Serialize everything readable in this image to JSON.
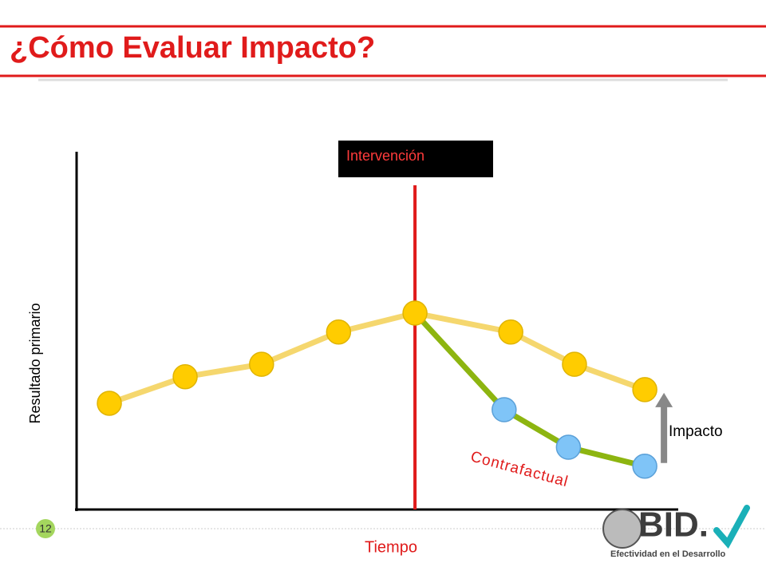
{
  "slide": {
    "title": "¿Cómo Evaluar Impacto?",
    "page_number": "12",
    "logo_text": "BID.",
    "logo_tagline": "Efectividad en el Desarrollo"
  },
  "chart_data": {
    "type": "line",
    "x_label": "Tiempo",
    "y_label": "Resultado primario",
    "xlim": [
      0,
      100
    ],
    "ylim": [
      0,
      100
    ],
    "series": [
      {
        "color": "#ffcc00",
        "x": [
          5.4,
          17.9,
          30.5,
          43.2,
          55.8,
          71.6,
          82.1,
          93.7
        ],
        "values": [
          29.7,
          37.1,
          40.6,
          49.6,
          54.9,
          49.6,
          40.6,
          33.5
        ]
      },
      {
        "name": "Contrafactual",
        "color": "#7fc4f7",
        "x": [
          55.8,
          70.5,
          81.1,
          93.7
        ],
        "values": [
          54.9,
          27.9,
          17.4,
          12.1
        ]
      }
    ],
    "intervention": {
      "label": "Intervención",
      "x": 55.8
    },
    "impact_label": "Impacto"
  }
}
